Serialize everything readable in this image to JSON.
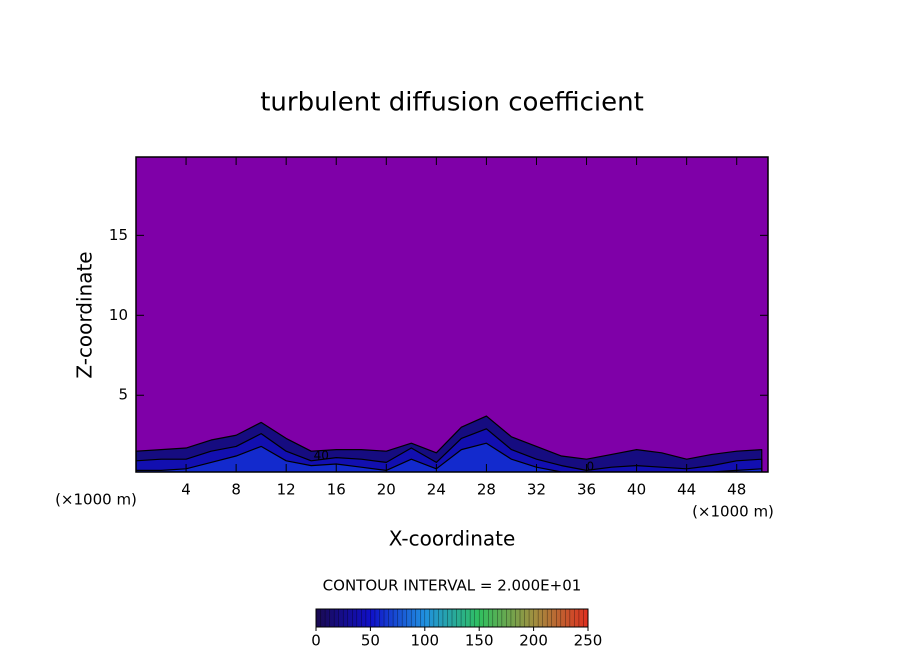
{
  "chart_data": {
    "type": "contour",
    "title": "turbulent diffusion coefficient",
    "x_label": "X-coordinate",
    "y_label": "Z-coordinate",
    "x_unit": "(×1000 m)",
    "contour_interval": "CONTOUR INTERVAL = 2.000E+01",
    "background_color": "#7f00a8",
    "xlim": [
      0,
      50.5
    ],
    "ylim": [
      0.2,
      19.9
    ],
    "xticks": [
      4,
      8,
      12,
      16,
      20,
      24,
      28,
      32,
      36,
      40,
      44,
      48
    ],
    "yticks": [
      5,
      10,
      15
    ],
    "x": [
      0,
      2,
      4,
      6,
      8,
      10,
      12,
      14,
      16,
      18,
      20,
      22,
      24,
      26,
      28,
      30,
      32,
      34,
      36,
      38,
      40,
      42,
      44,
      46,
      48,
      50
    ],
    "levels": [
      {
        "level": 20,
        "top": [
          1.5,
          1.6,
          1.7,
          2.2,
          2.5,
          3.3,
          2.3,
          1.5,
          1.6,
          1.6,
          1.5,
          2.0,
          1.4,
          3.0,
          3.7,
          2.4,
          1.8,
          1.2,
          1.0,
          1.3,
          1.6,
          1.4,
          1.0,
          1.3,
          1.5,
          1.6
        ]
      },
      {
        "level": 40,
        "top": [
          0.9,
          1.0,
          1.0,
          1.5,
          1.8,
          2.6,
          1.5,
          0.9,
          1.1,
          1.0,
          0.8,
          1.7,
          0.8,
          2.3,
          2.9,
          1.6,
          1.0,
          0.6,
          0.3,
          0.5,
          0.6,
          0.5,
          0.4,
          0.6,
          0.9,
          1.0
        ]
      },
      {
        "level": 60,
        "top": [
          0.3,
          0.3,
          0.4,
          0.8,
          1.2,
          1.8,
          0.9,
          0.6,
          0.7,
          0.5,
          0.3,
          1.0,
          0.4,
          1.6,
          2.0,
          1.0,
          0.5,
          0.2,
          0.2,
          0.2,
          0.2,
          0.2,
          0.2,
          0.2,
          0.3,
          0.4
        ]
      }
    ],
    "contour_labels": [
      {
        "x": 14.8,
        "z": 1.2,
        "value": 40
      },
      {
        "x": 36.3,
        "z": 0.5,
        "value": 0
      }
    ],
    "colorbar": {
      "lim": [
        0,
        250
      ],
      "ticks": [
        0,
        50,
        100,
        150,
        200,
        250
      ],
      "colors": [
        "#1a0a50",
        "#1010c8",
        "#2090e0",
        "#30c060",
        "#a09040",
        "#e03020"
      ]
    }
  }
}
